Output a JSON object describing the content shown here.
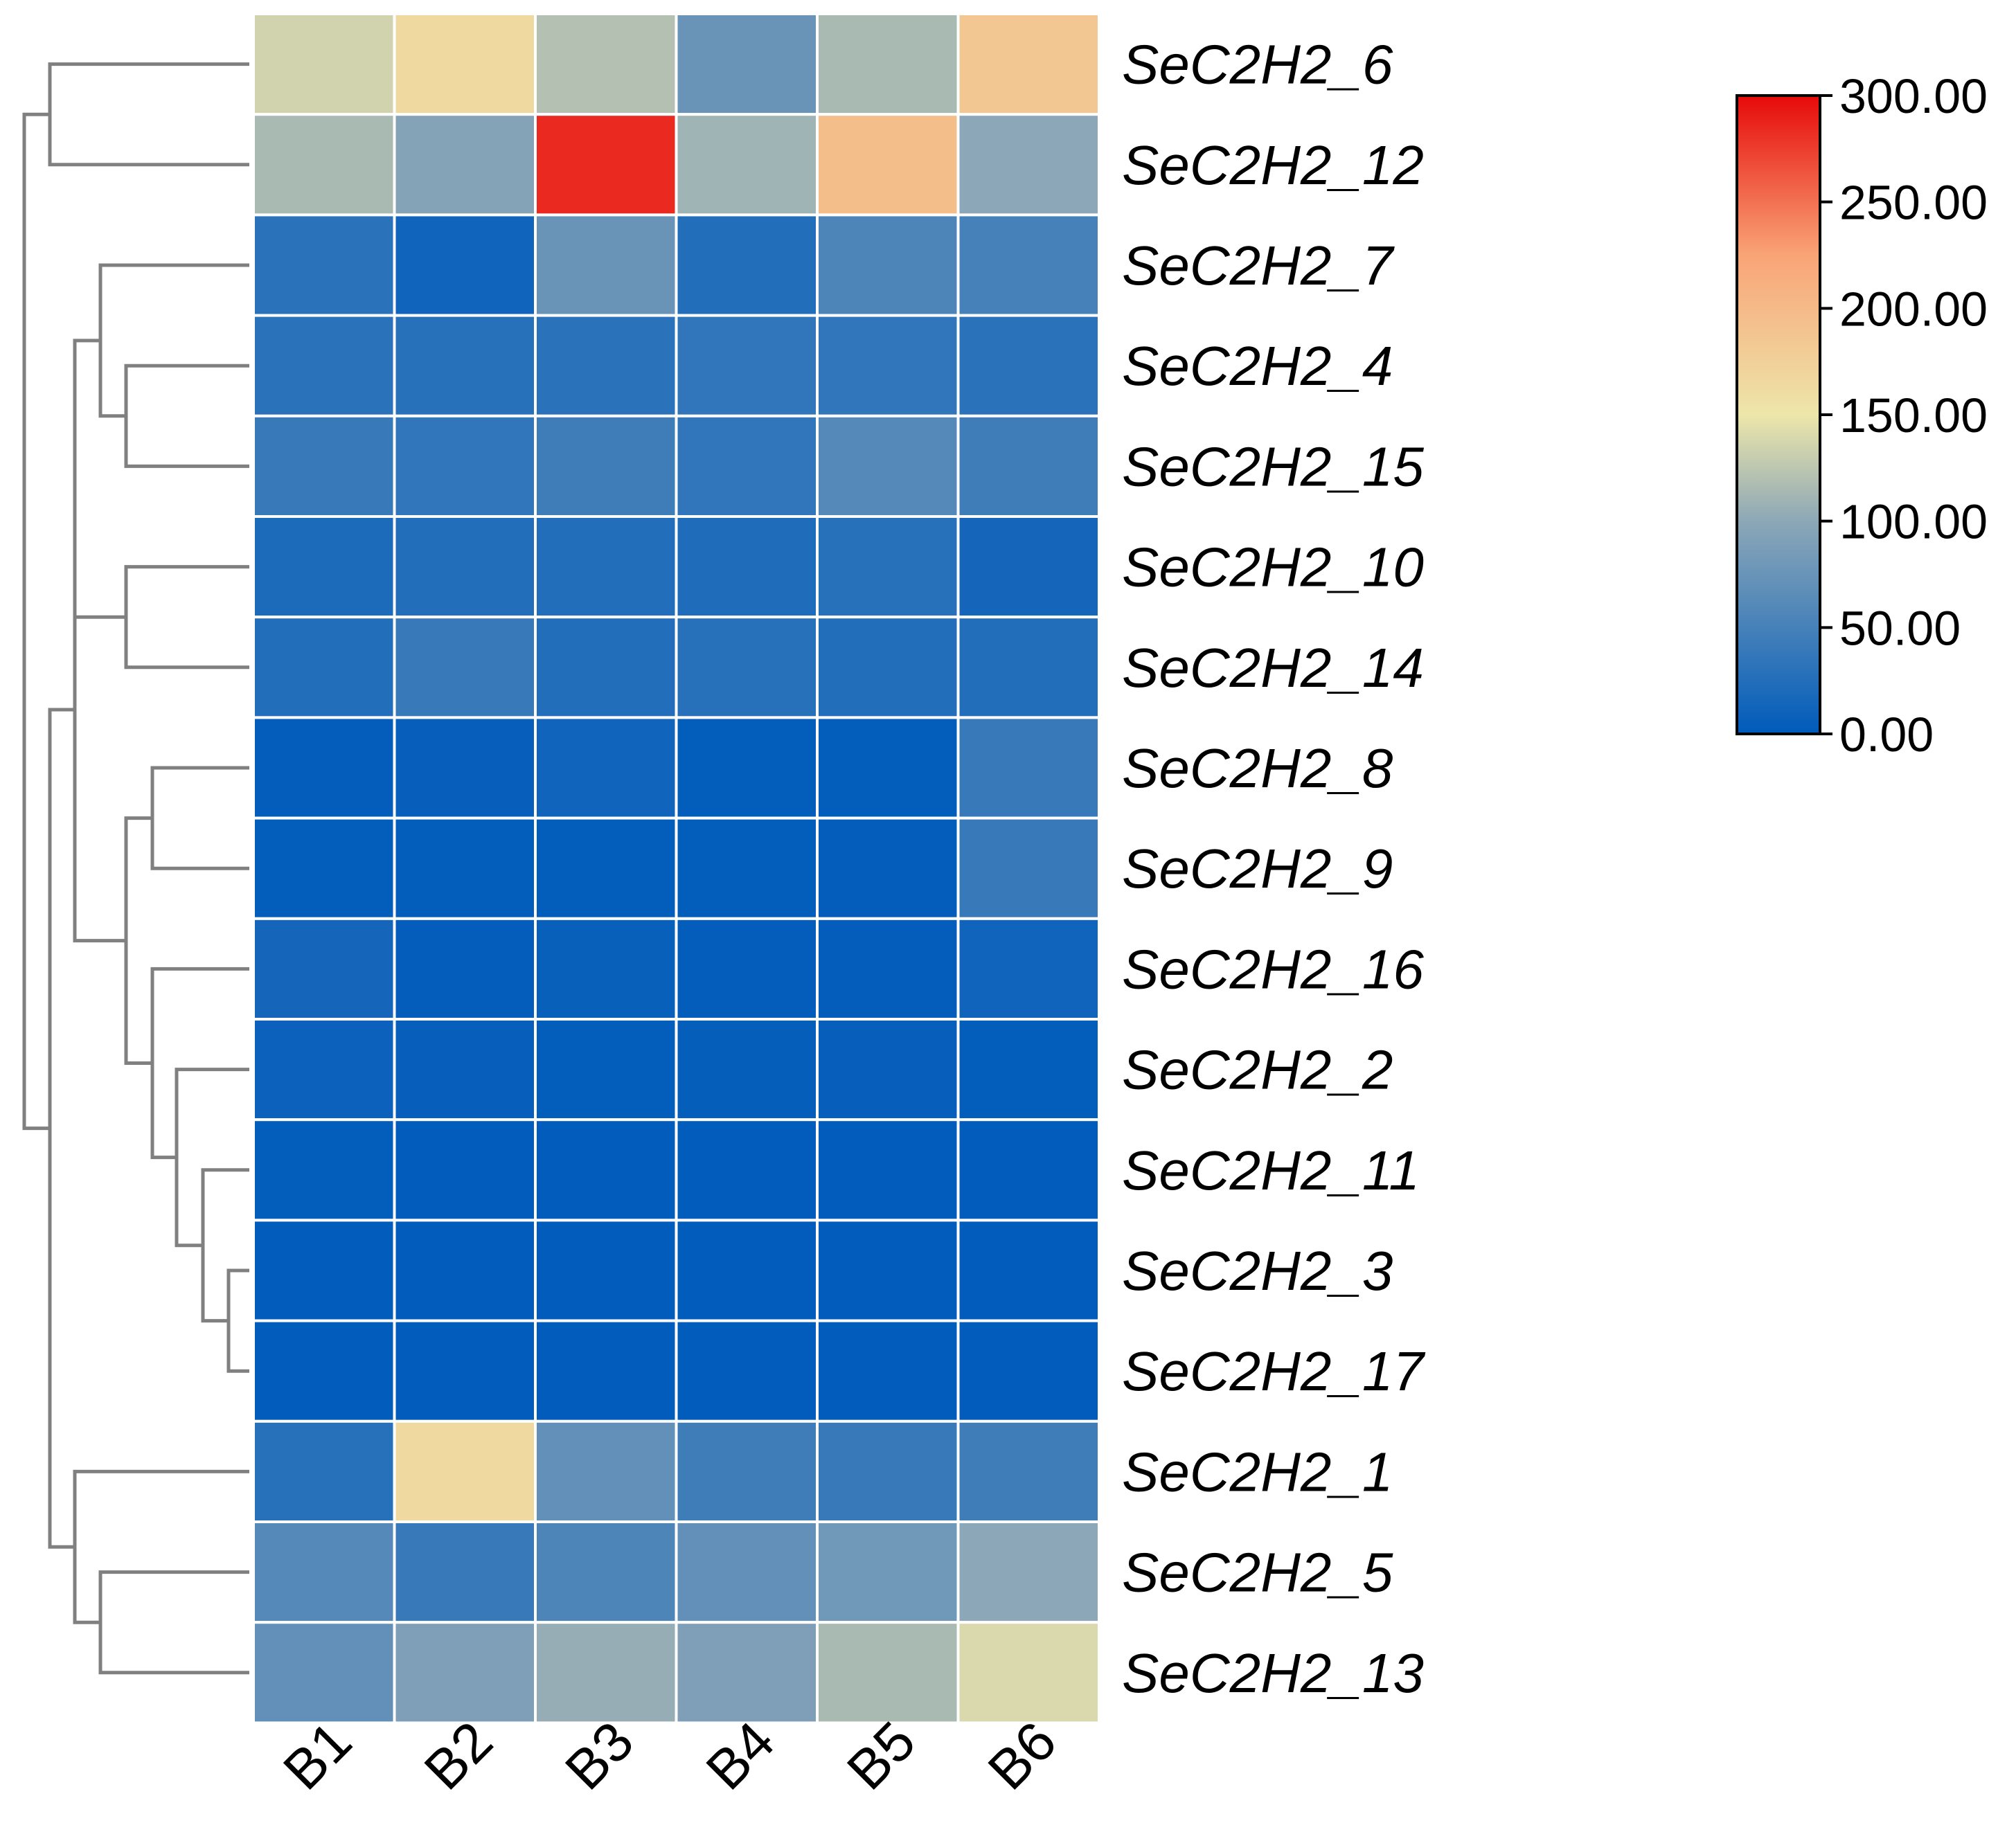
{
  "chart_data": {
    "type": "heatmap",
    "title": "",
    "rows": [
      "SeC2H2_6",
      "SeC2H2_12",
      "SeC2H2_7",
      "SeC2H2_4",
      "SeC2H2_15",
      "SeC2H2_10",
      "SeC2H2_14",
      "SeC2H2_8",
      "SeC2H2_9",
      "SeC2H2_16",
      "SeC2H2_2",
      "SeC2H2_11",
      "SeC2H2_3",
      "SeC2H2_17",
      "SeC2H2_1",
      "SeC2H2_5",
      "SeC2H2_13"
    ],
    "columns": [
      "B1",
      "B2",
      "B3",
      "B4",
      "B5",
      "B6"
    ],
    "values": [
      [
        135,
        165,
        120,
        75,
        115,
        185
      ],
      [
        115,
        95,
        285,
        110,
        195,
        100
      ],
      [
        30,
        12,
        75,
        25,
        55,
        50
      ],
      [
        30,
        28,
        30,
        35,
        35,
        30
      ],
      [
        40,
        35,
        45,
        35,
        60,
        45
      ],
      [
        20,
        25,
        25,
        22,
        28,
        15
      ],
      [
        25,
        40,
        25,
        28,
        25,
        25
      ],
      [
        3,
        5,
        12,
        2,
        2,
        40
      ],
      [
        2,
        2,
        2,
        2,
        3,
        40
      ],
      [
        15,
        3,
        6,
        3,
        3,
        12
      ],
      [
        8,
        5,
        2,
        4,
        5,
        2
      ],
      [
        2,
        1,
        1,
        1,
        1,
        1
      ],
      [
        1,
        1,
        1,
        1,
        1,
        1
      ],
      [
        1,
        1,
        1,
        1,
        1,
        1
      ],
      [
        28,
        165,
        70,
        45,
        40,
        45
      ],
      [
        60,
        40,
        55,
        70,
        80,
        100
      ],
      [
        70,
        90,
        105,
        90,
        115,
        140
      ]
    ],
    "colorbar": {
      "min": 0,
      "max": 300,
      "ticks": [
        "0.00",
        "50.00",
        "100.00",
        "150.00",
        "200.00",
        "250.00",
        "300.00"
      ],
      "colors": [
        "#005bbb",
        "#8ca7b7",
        "#ede6aa",
        "#f9a477",
        "#e60a0a"
      ]
    },
    "dendrogram": "row clustering tree"
  }
}
